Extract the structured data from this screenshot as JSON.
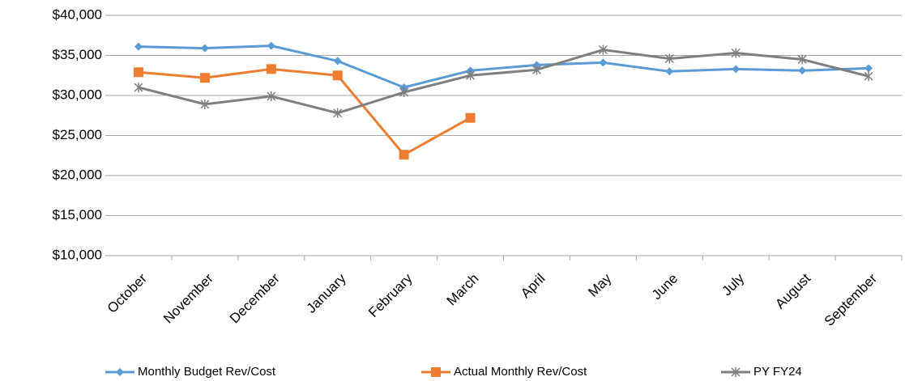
{
  "chart_data": {
    "type": "line",
    "categories": [
      "October",
      "November",
      "December",
      "January",
      "February",
      "March",
      "April",
      "May",
      "June",
      "July",
      "August",
      "September"
    ],
    "series": [
      {
        "name": "Monthly Budget Rev/Cost",
        "color": "#5b9bd5",
        "marker": "diamond",
        "values": [
          36100,
          35900,
          36200,
          34300,
          31000,
          33100,
          33800,
          34100,
          33000,
          33300,
          33100,
          33400
        ]
      },
      {
        "name": "Actual Monthly Rev/Cost",
        "color": "#ed7d31",
        "marker": "square",
        "values": [
          32900,
          32200,
          33300,
          32500,
          22600,
          27200,
          null,
          null,
          null,
          null,
          null,
          null
        ]
      },
      {
        "name": "PY FY24",
        "color": "#7f7f7f",
        "marker": "star",
        "values": [
          31000,
          28900,
          29900,
          27800,
          30400,
          32500,
          33200,
          35700,
          34600,
          35300,
          34500,
          32400
        ]
      }
    ],
    "ylim": [
      10000,
      40000
    ],
    "yticks": [
      {
        "value": 10000,
        "label": "$10,000"
      },
      {
        "value": 15000,
        "label": "$15,000"
      },
      {
        "value": 20000,
        "label": "$20,000"
      },
      {
        "value": 25000,
        "label": "$25,000"
      },
      {
        "value": 30000,
        "label": "$30,000"
      },
      {
        "value": 35000,
        "label": "$35,000"
      },
      {
        "value": 40000,
        "label": "$40,000"
      }
    ],
    "grid": true,
    "legend": "bottom"
  }
}
